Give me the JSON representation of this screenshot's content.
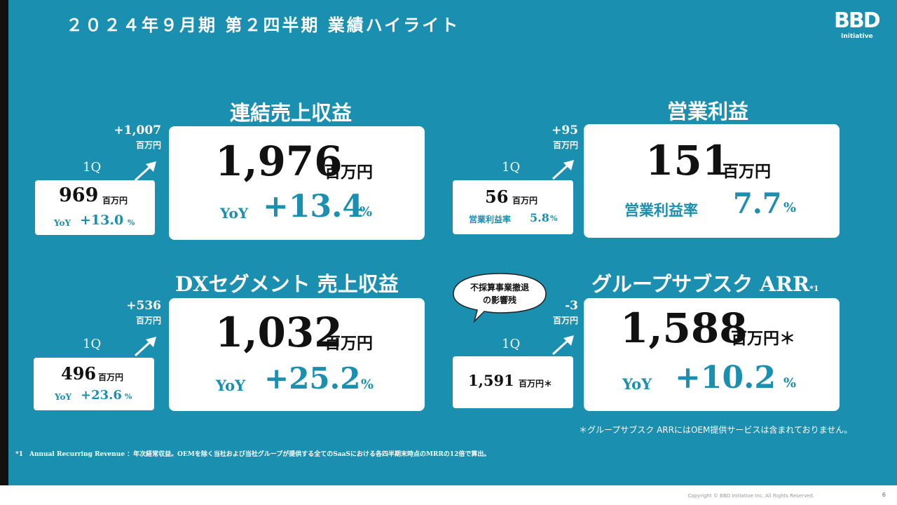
{
  "title": "２０２４年９月期 第２四半期 業績ハイライト",
  "logo": {
    "letters": "BBD",
    "sub": "Initiative"
  },
  "q_label": "1Q",
  "unit_myen": "百万円",
  "yoy_label": "YoY",
  "pct": "%",
  "revenue": {
    "title": "連結売上収益",
    "value": "1,976",
    "yoy": "+13.4",
    "delta": "+1,007",
    "q1_value": "969",
    "q1_yoy": "+13.0"
  },
  "op_profit": {
    "title": "営業利益",
    "value": "151",
    "margin_label": "営業利益率",
    "margin": "7.7",
    "delta": "+95",
    "q1_value": "56",
    "q1_margin": "5.8"
  },
  "dx": {
    "title": "DXセグメント 売上収益",
    "value": "1,032",
    "yoy": "+25.2",
    "delta": "+536",
    "q1_value": "496",
    "q1_yoy": "+23.6"
  },
  "arr": {
    "title": "グループサブスク ARR",
    "title_sup": "*1",
    "value": "1,588",
    "unit": "百万円＊",
    "yoy": "+10.2",
    "delta": "-3",
    "q1_value": "1,591",
    "q1_unit": "百万円＊"
  },
  "bubble": {
    "line1": "不採算事業撤退",
    "line2": "の影響残"
  },
  "arr_note": "＊グループサブスク ARRにはOEM提供サービスは含まれておりません。",
  "footnote": "*1　Annual Recurring Revenue ：年次経常収益。OEMを除く当社および当社グループが提供する全てのSaaSにおける各四半期末時点のMRRの12倍で算出。",
  "copyright": "Copyright © BBD Initiative Inc. All Rights Reserved.",
  "page_number": "6"
}
